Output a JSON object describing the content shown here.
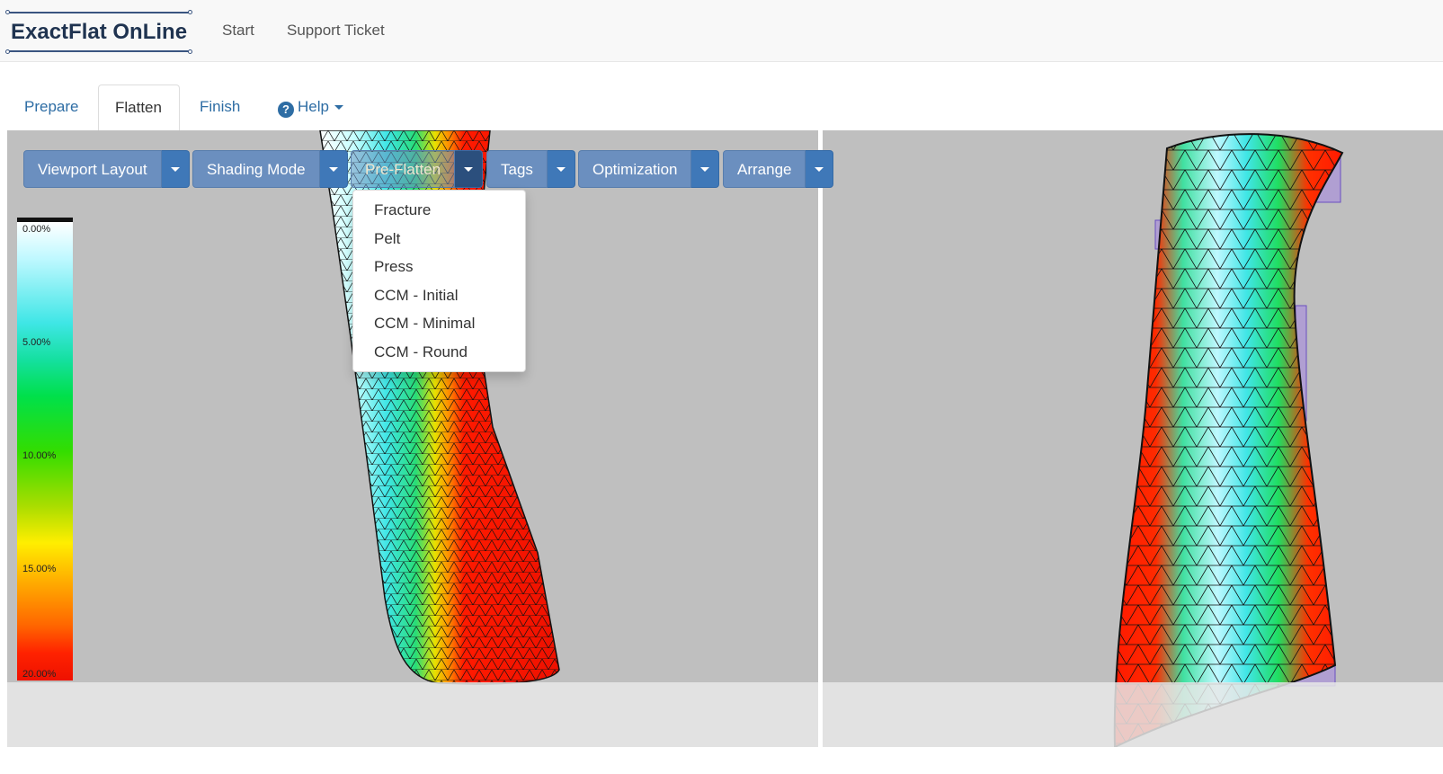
{
  "app": {
    "logo_text": "ExactFlat OnLine"
  },
  "nav": {
    "start": "Start",
    "support": "Support Ticket"
  },
  "tabs": [
    {
      "label": "Prepare"
    },
    {
      "label": "Flatten"
    },
    {
      "label": "Finish"
    },
    {
      "label": "Help"
    }
  ],
  "toolbar": {
    "viewport_layout": "Viewport Layout",
    "shading_mode": "Shading Mode",
    "pre_flatten": "Pre-Flatten",
    "tags": "Tags",
    "optimization": "Optimization",
    "arrange": "Arrange"
  },
  "preflatten_menu": [
    "Fracture",
    "Pelt",
    "Press",
    "CCM - Initial",
    "CCM - Minimal",
    "CCM - Round"
  ],
  "legend": {
    "top": "0.00%",
    "l1": "5.00%",
    "l2": "10.00%",
    "l3": "15.00%",
    "bottom": "20.00%"
  },
  "colors": {
    "accent": "#3f78b8",
    "button": "#6b8fbf",
    "viewport_bg": "#bfbfbf",
    "strain_high": "#ff1a00",
    "strain_low": "#ffffff"
  }
}
